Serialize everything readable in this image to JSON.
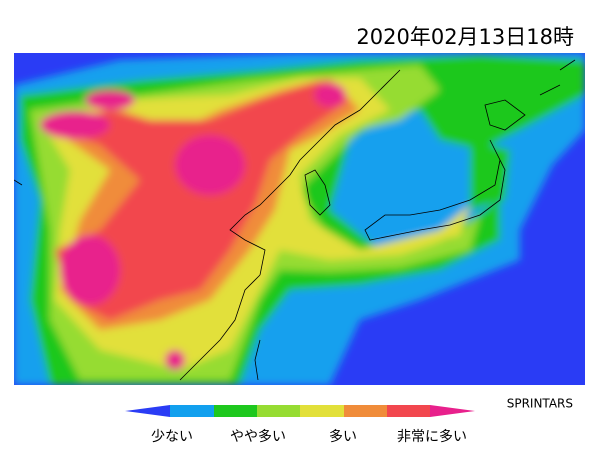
{
  "header": {
    "title": "2020年02月13日18時"
  },
  "credit": "SPRINTARS",
  "legend": {
    "labels": [
      "少ない",
      "やや多い",
      "多い",
      "非常に多い"
    ]
  }
}
